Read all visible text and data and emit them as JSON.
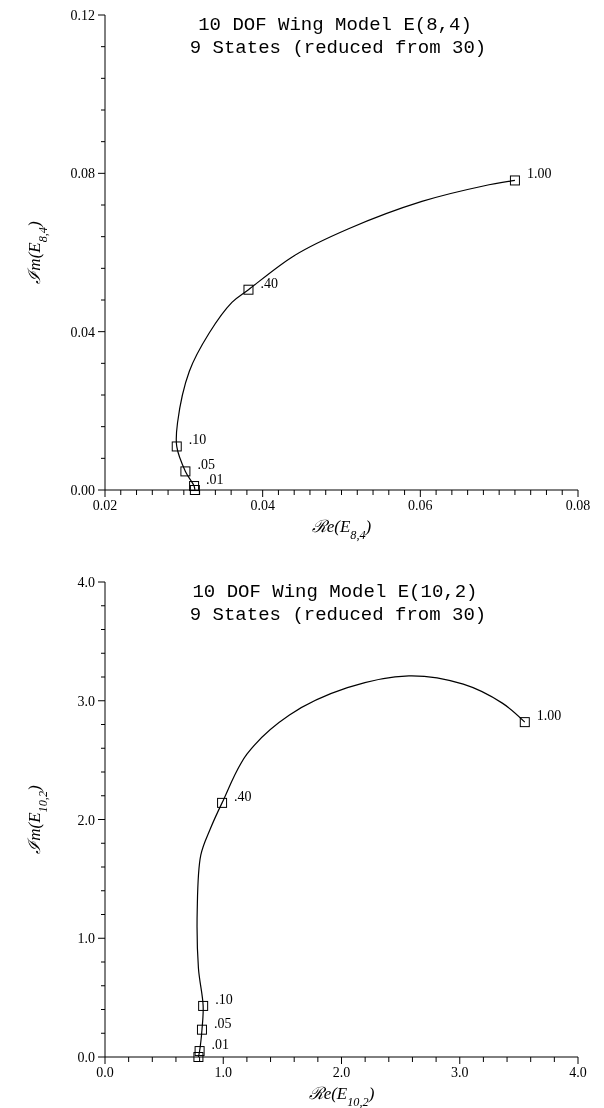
{
  "chart_data": [
    {
      "type": "line",
      "title": "10 DOF Wing Model E(8,4)",
      "subtitle": "9 States (reduced from 30)",
      "xlabel": "ℛe(E$_{8,4}$)",
      "ylabel": "ℐm(E$_{8,4}$)",
      "line_style": "solid",
      "grid": false,
      "xlim": [
        0.02,
        0.08
      ],
      "ylim": [
        0,
        0.12
      ],
      "xticks": [
        0.02,
        {
          "value": 0.022,
          "label": null
        },
        {
          "value": 0.024,
          "label": null
        },
        {
          "value": 0.026,
          "label": null
        },
        {
          "value": 0.028,
          "label": null
        },
        {
          "value": 0.03,
          "label": null
        },
        {
          "value": 0.032,
          "label": null
        },
        {
          "value": 0.034,
          "label": null
        },
        {
          "value": 0.036,
          "label": null
        },
        {
          "value": 0.038,
          "label": null
        },
        0.04,
        {
          "value": 0.042,
          "label": null
        },
        {
          "value": 0.044,
          "label": null
        },
        {
          "value": 0.046,
          "label": null
        },
        {
          "value": 0.048,
          "label": null
        },
        {
          "value": 0.05,
          "label": null
        },
        {
          "value": 0.052,
          "label": null
        },
        {
          "value": 0.054,
          "label": null
        },
        {
          "value": 0.056,
          "label": null
        },
        {
          "value": 0.058,
          "label": null
        },
        0.06,
        {
          "value": 0.062,
          "label": null
        },
        {
          "value": 0.064,
          "label": null
        },
        {
          "value": 0.066,
          "label": null
        },
        {
          "value": 0.068,
          "label": null
        },
        {
          "value": 0.07,
          "label": null
        },
        {
          "value": 0.072,
          "label": null
        },
        {
          "value": 0.074,
          "label": null
        },
        {
          "value": 0.076,
          "label": null
        },
        {
          "value": 0.078,
          "label": null
        },
        0.08
      ],
      "yticks": [
        {
          "value": 0,
          "label": "0.00"
        },
        {
          "value": 0.008,
          "label": null
        },
        {
          "value": 0.016,
          "label": null
        },
        {
          "value": 0.024,
          "label": null
        },
        {
          "value": 0.032,
          "label": null
        },
        0.04,
        {
          "value": 0.048,
          "label": null
        },
        {
          "value": 0.056,
          "label": null
        },
        {
          "value": 0.064,
          "label": null
        },
        {
          "value": 0.072,
          "label": null
        },
        0.08,
        {
          "value": 0.088,
          "label": null
        },
        {
          "value": 0.096,
          "label": null
        },
        {
          "value": 0.104,
          "label": null
        },
        {
          "value": 0.112,
          "label": null
        },
        0.12
      ],
      "series": [
        {
          "marker": "none",
          "color": "#000000",
          "x": [
            0.0314,
            0.0313,
            0.0302,
            0.0291,
            0.0292,
            0.0307,
            0.0332,
            0.0361,
            0.0382,
            0.044,
            0.0509,
            0.0602,
            0.068,
            0.072
          ],
          "values": [
            0,
            0.001,
            0.0047,
            0.011,
            0.017,
            0.03,
            0.0396,
            0.0474,
            0.0506,
            0.0592,
            0.066,
            0.0729,
            0.0768,
            0.0782
          ]
        },
        {
          "type": "scatter",
          "marker": "square",
          "color": "#000000",
          "x": [
            0.0314,
            0.0313,
            0.0302,
            0.0291,
            0.0382,
            0.072
          ],
          "values": [
            0,
            0.001,
            0.0047,
            0.011,
            0.0506,
            0.0782
          ]
        }
      ],
      "annotations": [
        {
          "text": ".01",
          "x": 0.0313,
          "y": 0.001
        },
        {
          "text": ".05",
          "x": 0.0302,
          "y": 0.0047
        },
        {
          "text": ".10",
          "x": 0.0291,
          "y": 0.011
        },
        {
          "text": ".40",
          "x": 0.0382,
          "y": 0.0506
        },
        {
          "text": "1.00",
          "x": 0.072,
          "y": 0.0782
        }
      ]
    },
    {
      "type": "line",
      "title": "10 DOF Wing Model E(10,2)",
      "subtitle": "9 States (reduced from 30)",
      "xlabel": "ℛe(E$_{10,2}$)",
      "ylabel": "ℐm(E$_{10,2}$)",
      "line_style": "solid",
      "grid": false,
      "xlim": [
        0,
        4
      ],
      "ylim": [
        0,
        4
      ],
      "xticks": [
        {
          "value": 0,
          "label": "0.0"
        },
        {
          "value": 0.2,
          "label": null
        },
        {
          "value": 0.4,
          "label": null
        },
        {
          "value": 0.6,
          "label": null
        },
        {
          "value": 0.8,
          "label": null
        },
        {
          "value": 1,
          "label": "1.0"
        },
        {
          "value": 1.2,
          "label": null
        },
        {
          "value": 1.4,
          "label": null
        },
        {
          "value": 1.6,
          "label": null
        },
        {
          "value": 1.8,
          "label": null
        },
        {
          "value": 2,
          "label": "2.0"
        },
        {
          "value": 2.2,
          "label": null
        },
        {
          "value": 2.4,
          "label": null
        },
        {
          "value": 2.6,
          "label": null
        },
        {
          "value": 2.8,
          "label": null
        },
        {
          "value": 3,
          "label": "3.0"
        },
        {
          "value": 3.2,
          "label": null
        },
        {
          "value": 3.4,
          "label": null
        },
        {
          "value": 3.6,
          "label": null
        },
        {
          "value": 3.8,
          "label": null
        },
        {
          "value": 4,
          "label": "4.0"
        }
      ],
      "yticks": [
        {
          "value": 0,
          "label": "0.0"
        },
        {
          "value": 0.2,
          "label": null
        },
        {
          "value": 0.4,
          "label": null
        },
        {
          "value": 0.6,
          "label": null
        },
        {
          "value": 0.8,
          "label": null
        },
        {
          "value": 1,
          "label": "1.0"
        },
        {
          "value": 1.2,
          "label": null
        },
        {
          "value": 1.4,
          "label": null
        },
        {
          "value": 1.6,
          "label": null
        },
        {
          "value": 1.8,
          "label": null
        },
        {
          "value": 2,
          "label": "2.0"
        },
        {
          "value": 2.2,
          "label": null
        },
        {
          "value": 2.4,
          "label": null
        },
        {
          "value": 2.6,
          "label": null
        },
        {
          "value": 2.8,
          "label": null
        },
        {
          "value": 3,
          "label": "3.0"
        },
        {
          "value": 3.2,
          "label": null
        },
        {
          "value": 3.4,
          "label": null
        },
        {
          "value": 3.6,
          "label": null
        },
        {
          "value": 3.8,
          "label": null
        },
        {
          "value": 4,
          "label": "4.0"
        }
      ],
      "series": [
        {
          "marker": "none",
          "color": "#000000",
          "x": [
            0.79,
            0.8,
            0.82,
            0.83,
            0.79,
            0.78,
            0.81,
            0.89,
            0.99,
            1.2,
            1.56,
            2.05,
            2.57,
            3.03,
            3.36,
            3.55
          ],
          "values": [
            0,
            0.05,
            0.23,
            0.43,
            0.75,
            1.24,
            1.7,
            1.92,
            2.14,
            2.55,
            2.88,
            3.11,
            3.21,
            3.14,
            2.98,
            2.82
          ]
        },
        {
          "type": "scatter",
          "marker": "square",
          "color": "#000000",
          "x": [
            0.79,
            0.8,
            0.82,
            0.83,
            0.99,
            3.55
          ],
          "values": [
            0,
            0.05,
            0.23,
            0.43,
            2.14,
            2.82
          ]
        }
      ],
      "annotations": [
        {
          "text": ".01",
          "x": 0.8,
          "y": 0.05
        },
        {
          "text": ".05",
          "x": 0.82,
          "y": 0.23
        },
        {
          "text": ".10",
          "x": 0.83,
          "y": 0.43
        },
        {
          "text": ".40",
          "x": 0.99,
          "y": 2.14
        },
        {
          "text": "1.00",
          "x": 3.55,
          "y": 2.82
        }
      ]
    }
  ]
}
